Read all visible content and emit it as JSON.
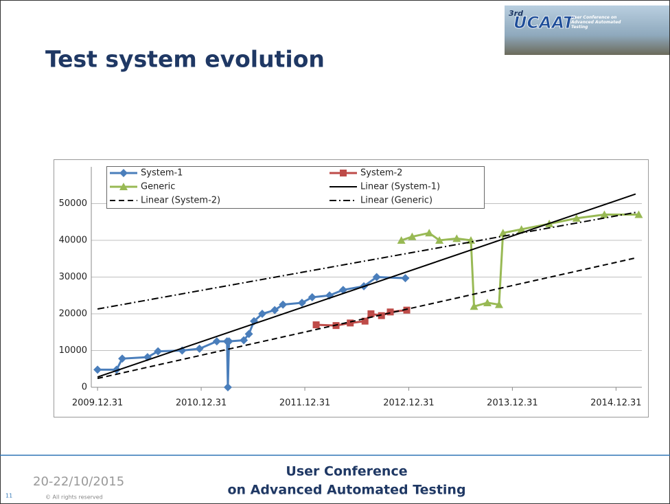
{
  "slide": {
    "title": "Test system evolution",
    "logo": {
      "edition": "3rd",
      "name": "UCAAT",
      "tagline": "User Conference on Advanced Automated Testing"
    },
    "date": "20-22/10/2015",
    "page": "11",
    "copyright": "© All rights reserved",
    "footer": [
      "User Conference",
      "on Advanced Automated Testing"
    ]
  },
  "chart_data": {
    "type": "line",
    "xlim": [
      "2009.12.09",
      "2015.04.01"
    ],
    "xticks": [
      "2009.12.31",
      "2010.12.31",
      "2011.12.31",
      "2012.12.31",
      "2013.12.31",
      "2014.12.31"
    ],
    "ylim": [
      0,
      60000
    ],
    "yticks": [
      0,
      10000,
      20000,
      30000,
      40000,
      50000
    ],
    "grid": true,
    "legend": "top",
    "series": [
      {
        "name": "System-1",
        "color": "#4a7ebb",
        "marker": "diamond",
        "dash": "solid",
        "x": [
          "2009.12.31",
          "2010.03.08",
          "2010.03.28",
          "2010.06.25",
          "2010.08.01",
          "2010.10.25",
          "2010.12.25",
          "2011.02.24",
          "2011.04.01",
          "2011.04.04",
          "2011.04.08",
          "2011.05.30",
          "2011.06.17",
          "2011.07.05",
          "2011.08.03",
          "2011.09.16",
          "2011.10.15",
          "2011.12.21",
          "2012.01.26",
          "2012.03.27",
          "2012.05.14",
          "2012.07.26",
          "2012.09.09",
          "2012.12.19"
        ],
        "values": [
          4800,
          4800,
          7800,
          8200,
          9800,
          10000,
          10500,
          12500,
          12500,
          0,
          12500,
          12800,
          14500,
          18000,
          20000,
          21000,
          22500,
          23000,
          24500,
          25000,
          26500,
          27500,
          30000,
          29700
        ]
      },
      {
        "name": "System-2",
        "color": "#be4b48",
        "marker": "square",
        "dash": "solid",
        "x": [
          "2012.02.09",
          "2012.04.19",
          "2012.06.08",
          "2012.07.30",
          "2012.08.20",
          "2012.09.26",
          "2012.10.27",
          "2012.12.24"
        ],
        "values": [
          17000,
          16800,
          17500,
          18000,
          20000,
          19500,
          20500,
          21000
        ]
      },
      {
        "name": "Generic",
        "color": "#98b954",
        "marker": "triangle",
        "dash": "solid",
        "x": [
          "2012.12.05",
          "2013.01.12",
          "2013.03.13",
          "2013.04.18",
          "2013.06.18",
          "2013.08.07",
          "2013.08.18",
          "2013.10.04",
          "2013.11.14",
          "2013.11.28",
          "2014.02.01",
          "2014.05.10",
          "2014.08.14",
          "2014.11.20",
          "2015.03.21"
        ],
        "values": [
          40000,
          41000,
          42000,
          40000,
          40500,
          40000,
          22000,
          23000,
          22500,
          42000,
          43000,
          44500,
          46000,
          47000,
          47000
        ]
      },
      {
        "name": "Linear (System-1)",
        "color": "#000000",
        "marker": "none",
        "dash": "solid",
        "x": [
          "2009.12.31",
          "2015.03.10"
        ],
        "values": [
          2800,
          52600
        ]
      },
      {
        "name": "Linear (System-2)",
        "color": "#000000",
        "marker": "none",
        "dash": "dashed",
        "x": [
          "2009.12.31",
          "2015.03.10"
        ],
        "values": [
          2400,
          35200
        ]
      },
      {
        "name": "Linear (Generic)",
        "color": "#000000",
        "marker": "none",
        "dash": "dashdot",
        "x": [
          "2009.12.31",
          "2015.03.10"
        ],
        "values": [
          21300,
          47600
        ]
      }
    ]
  }
}
